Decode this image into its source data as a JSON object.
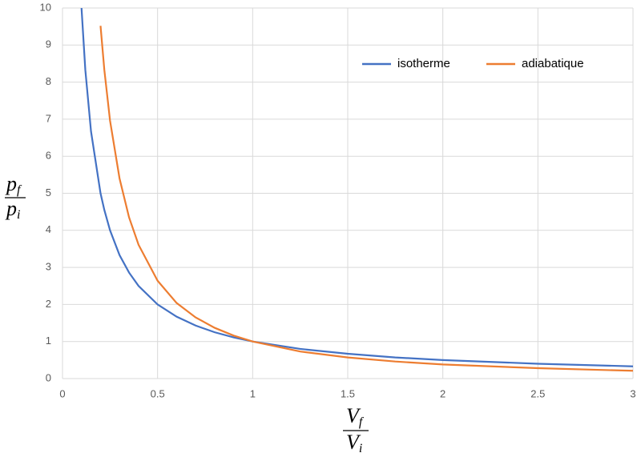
{
  "chart_data": {
    "type": "line",
    "x": [
      0.1,
      0.12,
      0.15,
      0.2,
      0.22,
      0.25,
      0.3,
      0.35,
      0.4,
      0.5,
      0.6,
      0.7,
      0.8,
      0.9,
      1,
      1.25,
      1.5,
      1.75,
      2,
      2.5,
      3
    ],
    "series": [
      {
        "name": "isotherme",
        "color": "#4472c4",
        "values": [
          10,
          8.33,
          6.67,
          5,
          4.55,
          4,
          3.33,
          2.86,
          2.5,
          2,
          1.67,
          1.43,
          1.25,
          1.11,
          1,
          0.8,
          0.67,
          0.57,
          0.5,
          0.4,
          0.33
        ]
      },
      {
        "name": "adiabatique",
        "color": "#ed7d31",
        "values": [
          null,
          null,
          null,
          9.52,
          8.33,
          6.96,
          5.4,
          4.35,
          3.61,
          2.64,
          2.04,
          1.65,
          1.37,
          1.16,
          1,
          0.73,
          0.57,
          0.46,
          0.38,
          0.28,
          0.21
        ]
      }
    ],
    "xlim": [
      0,
      3
    ],
    "xticks": [
      0,
      0.5,
      1,
      1.5,
      2,
      2.5,
      3
    ],
    "ylim": [
      0,
      10
    ],
    "yticks": [
      0,
      1,
      2,
      3,
      4,
      5,
      6,
      7,
      8,
      9,
      10
    ],
    "grid": true,
    "legend": "top-right",
    "y_label": {
      "top": "p",
      "top_sub": "f",
      "bottom": "p",
      "bottom_sub": "i"
    },
    "x_label": {
      "top": "V",
      "top_sub": "f",
      "bottom": "V",
      "bottom_sub": "i"
    }
  }
}
